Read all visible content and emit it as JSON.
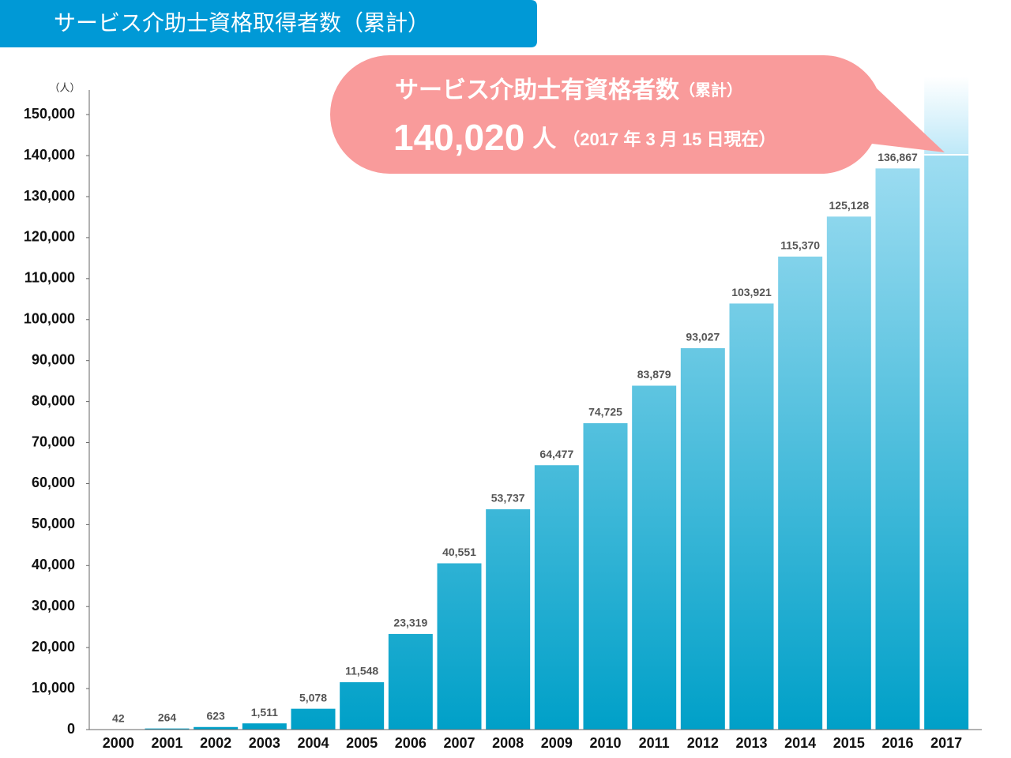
{
  "chart_data": {
    "type": "bar",
    "title": "サービス介助士資格取得者数（累計）",
    "y_unit": "（人）",
    "categories": [
      "2000",
      "2001",
      "2002",
      "2003",
      "2004",
      "2005",
      "2006",
      "2007",
      "2008",
      "2009",
      "2010",
      "2011",
      "2012",
      "2013",
      "2014",
      "2015",
      "2016",
      "2017"
    ],
    "values": [
      42,
      264,
      623,
      1511,
      5078,
      11548,
      23319,
      40551,
      53737,
      64477,
      74725,
      83879,
      93027,
      103921,
      115370,
      125128,
      136867,
      140020
    ],
    "value_labels": [
      "42",
      "264",
      "623",
      "1,511",
      "5,078",
      "11,548",
      "23,319",
      "40,551",
      "53,737",
      "64,477",
      "74,725",
      "83,879",
      "93,027",
      "103,921",
      "115,370",
      "125,128",
      "136,867",
      "140,020"
    ],
    "color": "#00a0c8",
    "ylim": [
      0,
      156000
    ],
    "yticks": [
      0,
      {
        "value": 10000,
        "label": "10,000"
      },
      {
        "value": 20000,
        "label": "20,000"
      },
      {
        "value": 30000,
        "label": "30,000"
      },
      {
        "value": 40000,
        "label": "40,000"
      },
      {
        "value": 50000,
        "label": "50,000"
      },
      {
        "value": 60000,
        "label": "60,000"
      },
      {
        "value": 70000,
        "label": "70,000"
      },
      {
        "value": 80000,
        "label": "80,000"
      },
      {
        "value": 90000,
        "label": "90,000"
      },
      {
        "value": 100000,
        "label": "100,000"
      },
      {
        "value": 110000,
        "label": "110,000"
      },
      {
        "value": 120000,
        "label": "120,000"
      },
      {
        "value": 130000,
        "label": "130,000"
      },
      {
        "value": 140000,
        "label": "140,000"
      },
      {
        "value": 150000,
        "label": "150,000"
      }
    ],
    "grid": false,
    "callout_title": "サービス介助士有資格者数",
    "callout_title_note": "（累計）",
    "callout_unit": "人",
    "callout_date": "（2017 年 3 月 15 日現在）"
  }
}
